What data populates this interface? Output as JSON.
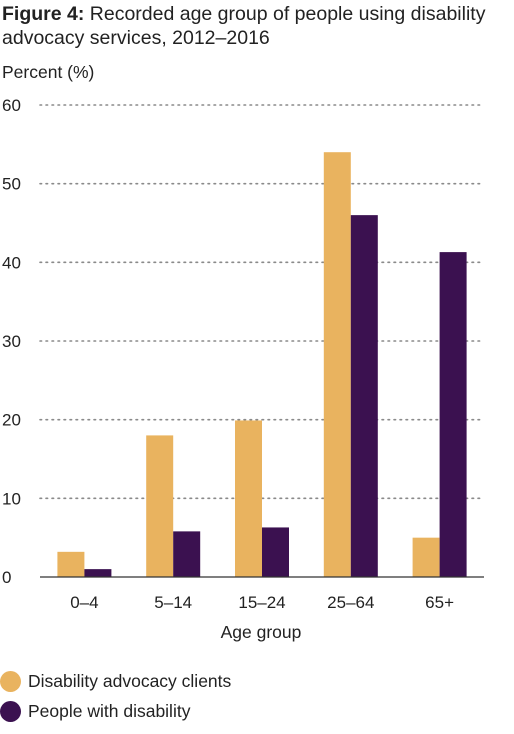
{
  "figure": {
    "label": "Figure 4:",
    "title": "Recorded age group of people using disability advocacy services, 2012–2016"
  },
  "colors": {
    "clients": "#e9b35f",
    "disability": "#3b1150",
    "grid": "#8a8a8a",
    "axis": "#333333"
  },
  "chart_data": {
    "type": "bar",
    "ylabel": "Percent (%)",
    "xlabel": "Age group",
    "ylim": [
      0,
      60
    ],
    "yticks": [
      0,
      10,
      20,
      30,
      40,
      50,
      60
    ],
    "grid": "dotted-horizontal",
    "legend_position": "bottom-left",
    "categories": [
      "0–4",
      "5–14",
      "15–24",
      "25–64",
      "65+"
    ],
    "series": [
      {
        "name": "Disability advocacy clients",
        "color": "#e9b35f",
        "values": [
          3.2,
          18,
          19.9,
          54,
          5
        ]
      },
      {
        "name": "People with disability",
        "color": "#3b1150",
        "values": [
          1,
          5.8,
          6.3,
          46,
          41.3
        ]
      }
    ]
  }
}
